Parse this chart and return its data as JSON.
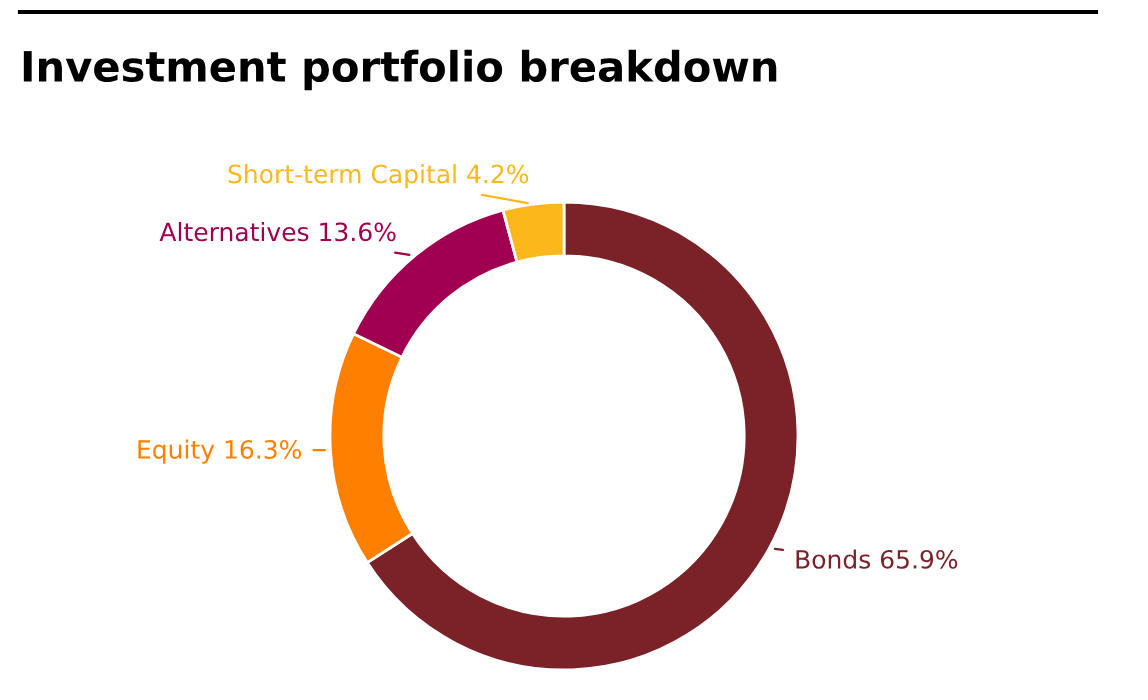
{
  "chart_data": {
    "type": "donut",
    "title": "Investment portfolio breakdown",
    "categories": [
      "Bonds",
      "Equity",
      "Alternatives",
      "Short-term Capital"
    ],
    "values": [
      65.9,
      16.3,
      13.6,
      4.2
    ],
    "value_labels": [
      "65.9%",
      "16.3%",
      "13.6%",
      "4.2%"
    ],
    "colors": [
      "#7b2229",
      "#ff8000",
      "#a0004f",
      "#fcb71a"
    ],
    "legend": false
  }
}
